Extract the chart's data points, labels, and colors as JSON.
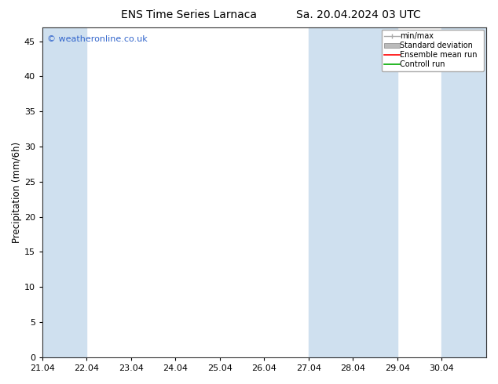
{
  "title_left": "ENS Time Series Larnaca",
  "title_right": "Sa. 20.04.2024 03 UTC",
  "ylabel": "Precipitation (mm/6h)",
  "ylim": [
    0,
    47
  ],
  "yticks": [
    0,
    5,
    10,
    15,
    20,
    25,
    30,
    35,
    40,
    45
  ],
  "xlim": [
    0,
    10
  ],
  "xtick_labels": [
    "21.04",
    "22.04",
    "23.04",
    "24.04",
    "25.04",
    "26.04",
    "27.04",
    "28.04",
    "29.04",
    "30.04"
  ],
  "xtick_positions": [
    0,
    1,
    2,
    3,
    4,
    5,
    6,
    7,
    8,
    9
  ],
  "shaded_bands": [
    [
      0,
      1
    ],
    [
      6,
      7
    ],
    [
      7,
      8
    ],
    [
      9,
      10
    ]
  ],
  "band_color": "#cfe0ef",
  "background_color": "#ffffff",
  "plot_bg_color": "#ffffff",
  "watermark": "© weatheronline.co.uk",
  "watermark_color": "#3366cc",
  "legend_labels": [
    "min/max",
    "Standard deviation",
    "Ensemble mean run",
    "Controll run"
  ],
  "legend_line_colors": [
    "#aaaaaa",
    "#bbbbbb",
    "#ff0000",
    "#00aa00"
  ],
  "title_fontsize": 10,
  "tick_fontsize": 8,
  "ylabel_fontsize": 8.5
}
